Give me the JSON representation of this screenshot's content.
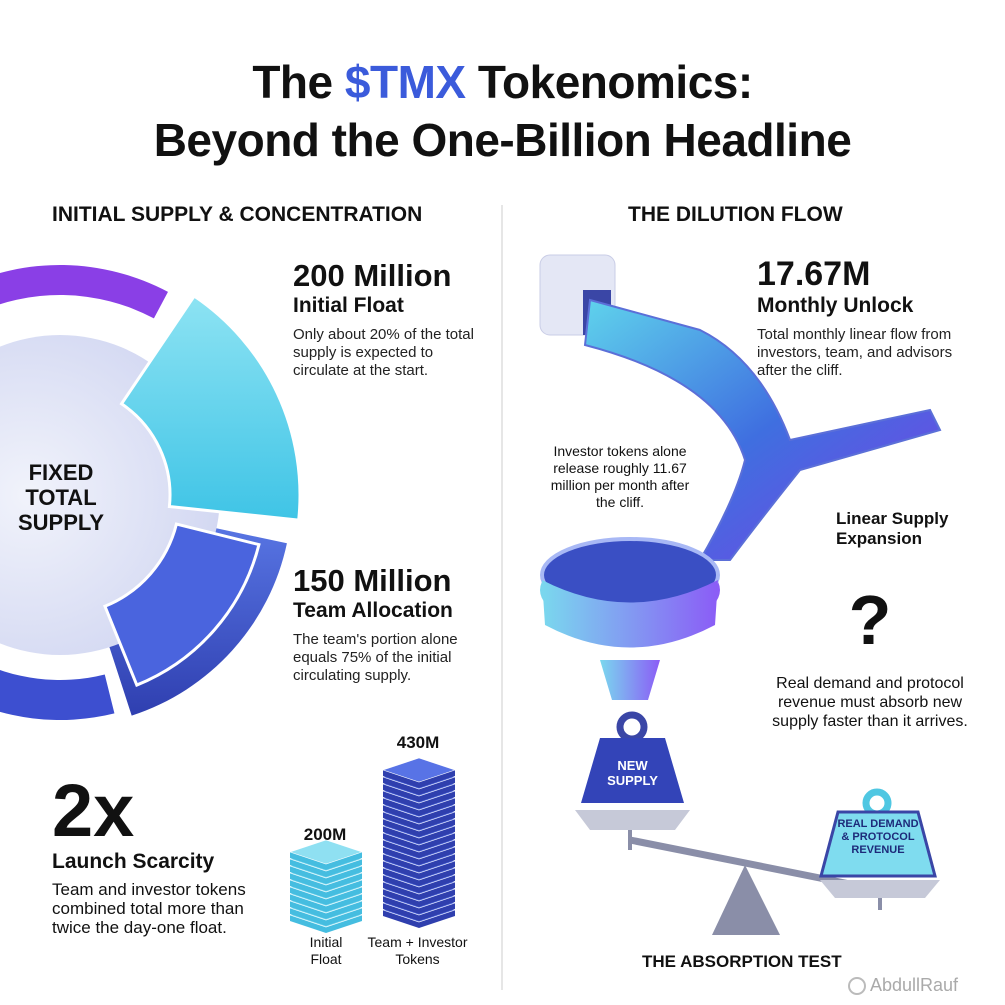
{
  "title": {
    "prefix": "The",
    "highlight": "$TMX",
    "suffix": "Tokenomics:",
    "line2": "Beyond the One-Billion Headline"
  },
  "left": {
    "heading": "INITIAL SUPPLY & CONCENTRATION",
    "ring_label": [
      "FIXED",
      "TOTAL",
      "SUPPLY"
    ],
    "stats": [
      {
        "value": "200 Million",
        "label": "Initial Float",
        "text": "Only about 20% of the total supply is expected to circulate at the start."
      },
      {
        "value": "150 Million",
        "label": "Team Allocation",
        "text": "The team's portion alone equals 75% of the initial circulating supply."
      }
    ],
    "scarcity": {
      "value": "2x",
      "label": "Launch Scarcity",
      "text": "Team and investor tokens combined total more than twice the day-one float."
    },
    "stacks": [
      {
        "value": "200M",
        "label": "Initial Float"
      },
      {
        "value": "430M",
        "label": "Team + Investor Tokens"
      }
    ]
  },
  "right": {
    "heading": "THE DILUTION FLOW",
    "unlock": {
      "value": "17.67M",
      "label": "Monthly Unlock",
      "text": "Total monthly linear flow from investors, team, and advisors after the cliff."
    },
    "investor_note": "Investor tokens alone release roughly 11.67 million per month after the cliff.",
    "expansion_label": "Linear Supply Expansion",
    "question": "?",
    "demand_note": "Real demand and protocol revenue must absorb new supply faster than it arrives.",
    "weights": {
      "supply": "NEW SUPPLY",
      "demand": "REAL DEMAND & PROTOCOL REVENUE"
    },
    "footer": "THE ABSORPTION TEST"
  },
  "watermark": "AbdullRauf"
}
